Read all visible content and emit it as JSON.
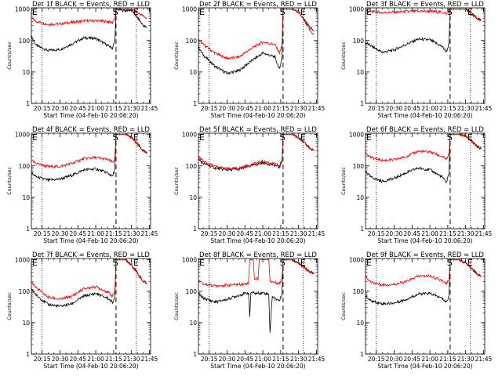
{
  "figure": {
    "background": "#ffffff",
    "events_color": "#000000",
    "lld_color": "#ff0000"
  },
  "chart_data": [
    {
      "type": "line",
      "title": "Det 1f BLACK = Events, RED = LLD",
      "xlabel": "Start Time (04-Feb-10 20:06:20)",
      "ylabel": "Counts/sec",
      "yscale": "log",
      "ylim": [
        1,
        1100
      ],
      "xticks": [
        "20:15",
        "20:30",
        "20:45",
        "21:00",
        "21:15",
        "21:30",
        "21:45"
      ],
      "yticks": [
        "1",
        "10",
        "100",
        "1000"
      ],
      "markers": [
        {
          "label": "E",
          "time": "20:06"
        },
        {
          "label": "S",
          "time": "21:17"
        },
        {
          "label": "E",
          "time": "21:34"
        }
      ],
      "series": [
        {
          "name": "BLACK = Events",
          "t": [
            "20:06",
            "20:10",
            "20:20",
            "20:30",
            "20:40",
            "20:50",
            "21:00",
            "21:10",
            "21:14",
            "21:16",
            "21:17",
            "21:25",
            "21:30",
            "21:40",
            "21:43"
          ],
          "y": [
            140,
            70,
            48,
            52,
            78,
            122,
            118,
            70,
            58,
            95,
            1000,
            900,
            950,
            300,
            250
          ]
        },
        {
          "name": "RED = LLD",
          "t": [
            "20:06",
            "20:10",
            "20:20",
            "20:30",
            "20:40",
            "20:50",
            "21:00",
            "21:10",
            "21:14",
            "21:16",
            "21:17",
            "21:25",
            "21:30",
            "21:40",
            "21:43"
          ],
          "y": [
            520,
            410,
            330,
            340,
            380,
            420,
            430,
            400,
            380,
            500,
            1000,
            1000,
            1000,
            600,
            500
          ]
        }
      ]
    },
    {
      "type": "line",
      "title": "Det 2f BLACK = Events, RED = LLD",
      "xlabel": "Start Time (04-Feb-10 20:06:20)",
      "ylabel": "Counts/sec",
      "yscale": "log",
      "ylim": [
        1,
        1100
      ],
      "xticks": [
        "20:15",
        "20:30",
        "20:45",
        "21:00",
        "21:15",
        "21:30",
        "21:45"
      ],
      "yticks": [
        "1",
        "10",
        "100",
        "1000"
      ],
      "markers": [
        {
          "label": "E",
          "time": "20:06"
        },
        {
          "label": "S",
          "time": "21:17"
        },
        {
          "label": "E",
          "time": "21:34"
        }
      ],
      "series": [
        {
          "name": "BLACK = Events",
          "t": [
            "20:06",
            "20:10",
            "20:20",
            "20:30",
            "20:40",
            "20:50",
            "21:00",
            "21:10",
            "21:14",
            "21:16",
            "21:17",
            "21:25",
            "21:30",
            "21:40",
            "21:43"
          ],
          "y": [
            60,
            35,
            15,
            9,
            11,
            22,
            40,
            30,
            12,
            30,
            1000,
            1000,
            800,
            250,
            200
          ]
        },
        {
          "name": "RED = LLD",
          "t": [
            "20:06",
            "20:10",
            "20:20",
            "20:30",
            "20:40",
            "20:50",
            "21:00",
            "21:10",
            "21:14",
            "21:16",
            "21:17",
            "21:25",
            "21:30",
            "21:40",
            "21:43"
          ],
          "y": [
            110,
            75,
            40,
            27,
            30,
            55,
            90,
            75,
            40,
            70,
            1000,
            1000,
            800,
            200,
            150
          ]
        }
      ]
    },
    {
      "type": "line",
      "title": "Det 3f BLACK = Events, RED = LLD",
      "xlabel": "Start Time (04-Feb-10 20:06:20)",
      "ylabel": "Counts/sec",
      "yscale": "log",
      "ylim": [
        1,
        1100
      ],
      "xticks": [
        "20:15",
        "20:30",
        "20:45",
        "21:00",
        "21:15",
        "21:30",
        "21:45"
      ],
      "yticks": [
        "1",
        "10",
        "100",
        "1000"
      ],
      "markers": [
        {
          "label": "E",
          "time": "20:06"
        },
        {
          "label": "S",
          "time": "21:17"
        },
        {
          "label": "E",
          "time": "21:34"
        }
      ],
      "series": [
        {
          "name": "BLACK = Events",
          "t": [
            "20:06",
            "20:10",
            "20:20",
            "20:30",
            "20:40",
            "20:50",
            "21:00",
            "21:10",
            "21:14",
            "21:16",
            "21:17",
            "21:25",
            "21:30",
            "21:40",
            "21:43"
          ],
          "y": [
            85,
            70,
            42,
            50,
            75,
            110,
            105,
            65,
            45,
            80,
            1000,
            1000,
            1000,
            500,
            450
          ]
        },
        {
          "name": "RED = LLD",
          "t": [
            "20:06",
            "20:10",
            "20:20",
            "20:30",
            "20:40",
            "20:50",
            "21:00",
            "21:10",
            "21:14",
            "21:16",
            "21:17",
            "21:25",
            "21:30",
            "21:40",
            "21:43"
          ],
          "y": [
            900,
            850,
            780,
            800,
            830,
            860,
            850,
            800,
            720,
            850,
            1000,
            1000,
            1000,
            500,
            450
          ]
        }
      ]
    },
    {
      "type": "line",
      "title": "Det 4f BLACK = Events, RED = LLD",
      "xlabel": "Start Time (04-Feb-10 20:06:20)",
      "ylabel": "Counts/sec",
      "yscale": "log",
      "ylim": [
        1,
        1100
      ],
      "xticks": [
        "20:15",
        "20:30",
        "20:45",
        "21:00",
        "21:15",
        "21:30",
        "21:45"
      ],
      "yticks": [
        "1",
        "10",
        "100",
        "1000"
      ],
      "markers": [
        {
          "label": "E",
          "time": "20:06"
        },
        {
          "label": "S",
          "time": "21:17"
        },
        {
          "label": "E",
          "time": "21:34"
        }
      ],
      "series": [
        {
          "name": "BLACK = Events",
          "t": [
            "20:06",
            "20:10",
            "20:20",
            "20:30",
            "20:40",
            "20:50",
            "21:00",
            "21:10",
            "21:14",
            "21:16",
            "21:17",
            "21:25",
            "21:30",
            "21:40",
            "21:43"
          ],
          "y": [
            60,
            45,
            35,
            38,
            50,
            75,
            80,
            60,
            45,
            80,
            1000,
            1000,
            800,
            300,
            250
          ]
        },
        {
          "name": "RED = LLD",
          "t": [
            "20:06",
            "20:10",
            "20:20",
            "20:30",
            "20:40",
            "20:50",
            "21:00",
            "21:10",
            "21:14",
            "21:16",
            "21:17",
            "21:25",
            "21:30",
            "21:40",
            "21:43"
          ],
          "y": [
            150,
            120,
            95,
            95,
            120,
            170,
            185,
            160,
            130,
            170,
            1000,
            1000,
            800,
            300,
            250
          ]
        }
      ]
    },
    {
      "type": "line",
      "title": "Det 5f BLACK = Events, RED = LLD",
      "xlabel": "Start Time (04-Feb-10 20:06:20)",
      "ylabel": "Counts/sec",
      "yscale": "log",
      "ylim": [
        1,
        1100
      ],
      "xticks": [
        "20:15",
        "20:30",
        "20:45",
        "21:00",
        "21:15",
        "21:30",
        "21:45"
      ],
      "yticks": [
        "1",
        "10",
        "100",
        "1000"
      ],
      "markers": [
        {
          "label": "E",
          "time": "20:06"
        },
        {
          "label": "S",
          "time": "21:17"
        },
        {
          "label": "E",
          "time": "21:34"
        }
      ],
      "series": [
        {
          "name": "BLACK = Events",
          "t": [
            "20:06",
            "20:10",
            "20:20",
            "20:30",
            "20:40",
            "20:50",
            "21:00",
            "21:10",
            "21:14",
            "21:16",
            "21:17",
            "21:25",
            "21:30",
            "21:40",
            "21:43"
          ],
          "y": [
            160,
            120,
            85,
            75,
            78,
            100,
            125,
            105,
            90,
            140,
            1000,
            1000,
            800,
            350,
            300
          ]
        },
        {
          "name": "RED = LLD",
          "t": [
            "20:06",
            "20:10",
            "20:20",
            "20:30",
            "20:40",
            "20:50",
            "21:00",
            "21:10",
            "21:14",
            "21:16",
            "21:17",
            "21:25",
            "21:30",
            "21:40",
            "21:43"
          ],
          "y": [
            190,
            140,
            95,
            80,
            85,
            110,
            140,
            115,
            100,
            160,
            1000,
            1000,
            800,
            350,
            300
          ]
        }
      ]
    },
    {
      "type": "line",
      "title": "Det 6f BLACK = Events, RED = LLD",
      "xlabel": "Start Time (04-Feb-10 20:06:20)",
      "ylabel": "Counts/sec",
      "yscale": "log",
      "ylim": [
        1,
        1100
      ],
      "xticks": [
        "20:15",
        "20:30",
        "20:45",
        "21:00",
        "21:15",
        "21:30",
        "21:45"
      ],
      "yticks": [
        "1",
        "10",
        "100",
        "1000"
      ],
      "markers": [
        {
          "label": "E",
          "time": "20:06"
        },
        {
          "label": "S",
          "time": "21:17"
        },
        {
          "label": "E",
          "time": "21:34"
        }
      ],
      "series": [
        {
          "name": "BLACK = Events",
          "t": [
            "20:06",
            "20:10",
            "20:20",
            "20:30",
            "20:40",
            "20:50",
            "21:00",
            "21:10",
            "21:14",
            "21:16",
            "21:17",
            "21:25",
            "21:30",
            "21:40",
            "21:43"
          ],
          "y": [
            70,
            45,
            32,
            40,
            60,
            85,
            75,
            45,
            30,
            60,
            1000,
            1000,
            900,
            400,
            350
          ]
        },
        {
          "name": "RED = LLD",
          "t": [
            "20:06",
            "20:10",
            "20:20",
            "20:30",
            "20:40",
            "20:50",
            "21:00",
            "21:10",
            "21:14",
            "21:16",
            "21:17",
            "21:25",
            "21:30",
            "21:40",
            "21:43"
          ],
          "y": [
            280,
            190,
            150,
            155,
            200,
            290,
            280,
            200,
            160,
            230,
            1000,
            1000,
            900,
            400,
            350
          ]
        }
      ]
    },
    {
      "type": "line",
      "title": "Det 7f BLACK = Events, RED = LLD",
      "xlabel": "Start Time (04-Feb-10 20:06:20)",
      "ylabel": "Counts/sec",
      "yscale": "log",
      "ylim": [
        1,
        1100
      ],
      "xticks": [
        "20:15",
        "20:30",
        "20:45",
        "21:00",
        "21:15",
        "21:30",
        "21:45"
      ],
      "yticks": [
        "1",
        "10",
        "100",
        "1000"
      ],
      "markers": [
        {
          "label": "E",
          "time": "20:06"
        },
        {
          "label": "S",
          "time": "21:17"
        },
        {
          "label": "E",
          "time": "21:34"
        }
      ],
      "series": [
        {
          "name": "BLACK = Events",
          "t": [
            "20:06",
            "20:10",
            "20:20",
            "20:30",
            "20:40",
            "20:50",
            "21:00",
            "21:10",
            "21:14",
            "21:16",
            "21:17",
            "21:25",
            "21:30",
            "21:40",
            "21:43"
          ],
          "y": [
            120,
            75,
            38,
            33,
            40,
            70,
            85,
            60,
            45,
            60,
            1000,
            1000,
            700,
            200,
            180
          ]
        },
        {
          "name": "RED = LLD",
          "t": [
            "20:06",
            "20:10",
            "20:20",
            "20:30",
            "20:40",
            "20:50",
            "21:00",
            "21:10",
            "21:14",
            "21:16",
            "21:17",
            "21:25",
            "21:30",
            "21:40",
            "21:43"
          ],
          "y": [
            200,
            130,
            65,
            55,
            70,
            120,
            140,
            95,
            70,
            100,
            1000,
            1000,
            700,
            200,
            180
          ]
        }
      ]
    },
    {
      "type": "line",
      "title": "Det 8f BLACK = Events, RED = LLD",
      "xlabel": "Start Time (04-Feb-10 20:06:20)",
      "ylabel": "Counts/sec",
      "yscale": "log",
      "ylim": [
        1,
        1100
      ],
      "xticks": [
        "20:15",
        "20:30",
        "20:45",
        "21:00",
        "21:15",
        "21:30",
        "21:45"
      ],
      "yticks": [
        "1",
        "10",
        "100",
        "1000"
      ],
      "markers": [
        {
          "label": "E",
          "time": "20:06"
        },
        {
          "label": "S",
          "time": "21:17"
        },
        {
          "label": "E",
          "time": "21:34"
        }
      ],
      "series": [
        {
          "name": "BLACK = Events",
          "t": [
            "20:06",
            "20:10",
            "20:20",
            "20:30",
            "20:40",
            "20:48",
            "20:49",
            "20:50",
            "20:55",
            "21:00",
            "21:05",
            "21:06",
            "21:08",
            "21:10",
            "21:14",
            "21:16",
            "21:17",
            "21:25",
            "21:30",
            "21:40",
            "21:43"
          ],
          "y": [
            85,
            60,
            45,
            55,
            75,
            90,
            15,
            90,
            85,
            90,
            80,
            5,
            70,
            60,
            50,
            80,
            1000,
            1000,
            800,
            400,
            350
          ]
        },
        {
          "name": "RED = LLD",
          "t": [
            "20:06",
            "20:10",
            "20:20",
            "20:30",
            "20:40",
            "20:48",
            "20:49",
            "20:52",
            "20:53",
            "20:56",
            "20:57",
            "21:05",
            "21:06",
            "21:08",
            "21:10",
            "21:14",
            "21:16",
            "21:17",
            "21:25",
            "21:30",
            "21:40",
            "21:43"
          ],
          "y": [
            220,
            170,
            150,
            155,
            165,
            180,
            1000,
            1000,
            250,
            250,
            1000,
            1000,
            220,
            200,
            190,
            180,
            250,
            1000,
            1000,
            800,
            400,
            350
          ]
        }
      ]
    },
    {
      "type": "line",
      "title": "Det 9f BLACK = Events, RED = LLD",
      "xlabel": "Start Time (04-Feb-10 20:06:20)",
      "ylabel": "Counts/sec",
      "yscale": "log",
      "ylim": [
        1,
        1100
      ],
      "xticks": [
        "20:15",
        "20:30",
        "20:45",
        "21:00",
        "21:15",
        "21:30",
        "21:45"
      ],
      "yticks": [
        "1",
        "10",
        "100",
        "1000"
      ],
      "markers": [
        {
          "label": "E",
          "time": "20:06"
        },
        {
          "label": "S",
          "time": "21:17"
        },
        {
          "label": "E",
          "time": "21:34"
        }
      ],
      "series": [
        {
          "name": "BLACK = Events",
          "t": [
            "20:06",
            "20:10",
            "20:20",
            "20:30",
            "20:40",
            "20:50",
            "21:00",
            "21:10",
            "21:14",
            "21:16",
            "21:17",
            "21:25",
            "21:30",
            "21:40",
            "21:43"
          ],
          "y": [
            70,
            50,
            40,
            42,
            55,
            80,
            85,
            60,
            45,
            70,
            1000,
            1000,
            800,
            350,
            300
          ]
        },
        {
          "name": "RED = LLD",
          "t": [
            "20:06",
            "20:10",
            "20:20",
            "20:30",
            "20:40",
            "20:50",
            "21:00",
            "21:10",
            "21:14",
            "21:16",
            "21:17",
            "21:25",
            "21:30",
            "21:40",
            "21:43"
          ],
          "y": [
            300,
            200,
            160,
            165,
            200,
            300,
            310,
            220,
            180,
            250,
            1000,
            1000,
            800,
            350,
            300
          ]
        }
      ]
    }
  ]
}
